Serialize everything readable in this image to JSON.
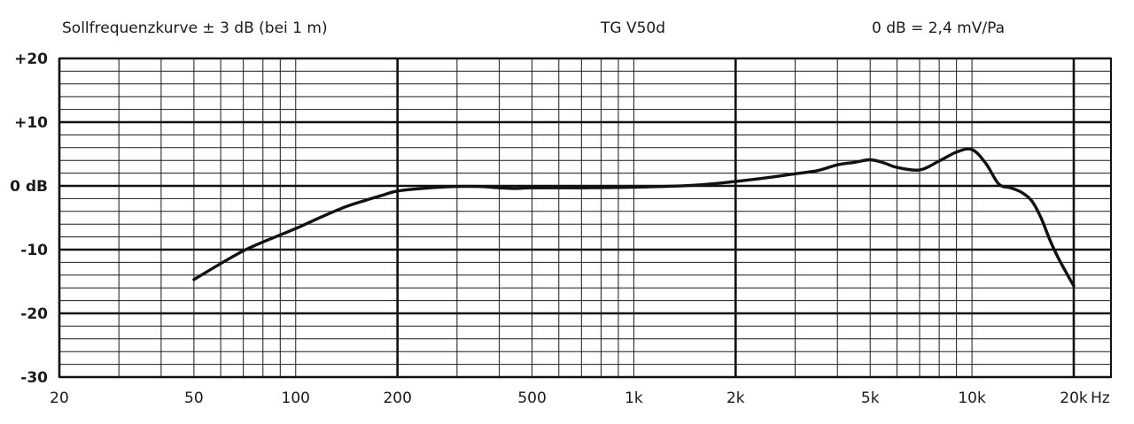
{
  "header": {
    "left": "Sollfrequenzkurve ± 3 dB (bei 1 m)",
    "center": "TG V50d",
    "right": "0 dB =  2,4 mV/Pa"
  },
  "chart_data": {
    "type": "line",
    "title": "TG V50d",
    "x_scale": "log",
    "xlim": [
      20,
      20000
    ],
    "ylim": [
      -30,
      20
    ],
    "x_ticks": [
      {
        "value": 20,
        "label": "20"
      },
      {
        "value": 50,
        "label": "50"
      },
      {
        "value": 100,
        "label": "100"
      },
      {
        "value": 200,
        "label": "200"
      },
      {
        "value": 500,
        "label": "500"
      },
      {
        "value": 1000,
        "label": "1k"
      },
      {
        "value": 2000,
        "label": "2k"
      },
      {
        "value": 5000,
        "label": "5k"
      },
      {
        "value": 10000,
        "label": "10k"
      },
      {
        "value": 20000,
        "label": "20k"
      }
    ],
    "x_unit": "Hz",
    "y_ticks": [
      {
        "value": 20,
        "label": "+20"
      },
      {
        "value": 10,
        "label": "+10"
      },
      {
        "value": 0,
        "label": "0 dB"
      },
      {
        "value": -10,
        "label": "-10"
      },
      {
        "value": -20,
        "label": "-20"
      },
      {
        "value": -30,
        "label": "-30"
      }
    ],
    "grid": true,
    "series": [
      {
        "points": [
          [
            50,
            -14.7
          ],
          [
            60,
            -12.2
          ],
          [
            70,
            -10.2
          ],
          [
            80,
            -8.8
          ],
          [
            100,
            -6.7
          ],
          [
            120,
            -4.8
          ],
          [
            140,
            -3.3
          ],
          [
            160,
            -2.3
          ],
          [
            180,
            -1.5
          ],
          [
            200,
            -0.8
          ],
          [
            250,
            -0.3
          ],
          [
            300,
            -0.1
          ],
          [
            350,
            -0.1
          ],
          [
            400,
            -0.3
          ],
          [
            450,
            -0.4
          ],
          [
            500,
            -0.3
          ],
          [
            700,
            -0.3
          ],
          [
            1000,
            -0.2
          ],
          [
            1500,
            0.1
          ],
          [
            2000,
            0.7
          ],
          [
            2500,
            1.3
          ],
          [
            3000,
            1.9
          ],
          [
            3500,
            2.4
          ],
          [
            4000,
            3.3
          ],
          [
            4500,
            3.7
          ],
          [
            5000,
            4.1
          ],
          [
            5500,
            3.6
          ],
          [
            6000,
            2.9
          ],
          [
            7000,
            2.5
          ],
          [
            8000,
            3.9
          ],
          [
            9000,
            5.3
          ],
          [
            10000,
            5.7
          ],
          [
            11000,
            3.5
          ],
          [
            12000,
            0.3
          ],
          [
            13000,
            -0.3
          ],
          [
            14000,
            -1.0
          ],
          [
            15000,
            -2.3
          ],
          [
            16000,
            -5.0
          ],
          [
            17000,
            -8.5
          ],
          [
            18000,
            -11.3
          ],
          [
            19000,
            -13.6
          ],
          [
            20000,
            -15.7
          ]
        ]
      }
    ]
  }
}
